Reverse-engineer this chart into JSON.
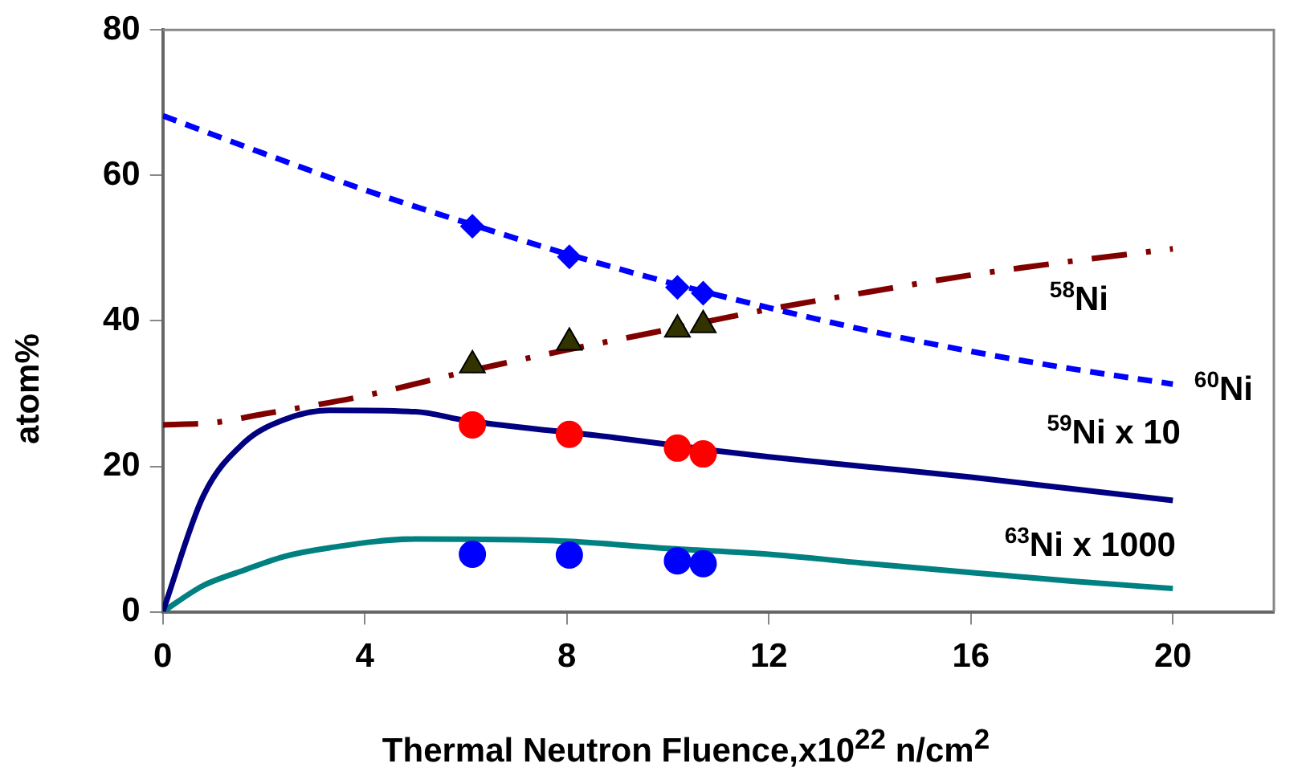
{
  "chart_data": {
    "type": "line",
    "xlabel": "Thermal Neutron Fluence,x10$^{22}$ n/cm$^{2}$",
    "ylabel": "atom%",
    "xlim": [
      0,
      22
    ],
    "xticks": [
      0,
      4,
      8,
      12,
      16,
      20
    ],
    "ylim": [
      0,
      80
    ],
    "yticks": [
      0,
      20,
      40,
      60,
      80
    ],
    "grid": false,
    "legend": false,
    "series": [
      {
        "name": "$^{60}$Ni",
        "color": "#0000ff",
        "line_style": "dashed",
        "marker": "none",
        "x": [
          0,
          2,
          4,
          6,
          8,
          10,
          12,
          14,
          16,
          18,
          20
        ],
        "values": [
          68.2,
          63,
          58,
          53.5,
          49.2,
          45.3,
          41.8,
          38.6,
          35.8,
          33.4,
          31.3
        ]
      },
      {
        "name": "$^{58}$Ni",
        "color": "#800000",
        "line_style": "dashdot",
        "marker": "none",
        "x": [
          0,
          1,
          2,
          4,
          6,
          8,
          10,
          12,
          14,
          16,
          18,
          20
        ],
        "values": [
          25.7,
          26,
          27.2,
          29.7,
          33,
          36,
          38.8,
          41.6,
          44,
          46.3,
          48.2,
          49.9
        ]
      },
      {
        "name": "$^{59}$Ni x 10",
        "color": "#000080",
        "line_style": "solid",
        "marker": "none",
        "x": [
          0,
          0.8,
          1.6,
          2.4,
          3.3,
          5,
          6,
          9,
          11,
          12,
          14,
          16,
          18,
          20
        ],
        "values": [
          0,
          15.9,
          23.2,
          26.4,
          27.7,
          27.5,
          26.3,
          23.9,
          22.1,
          21.3,
          19.9,
          18.5,
          16.9,
          15.3
        ]
      },
      {
        "name": "$^{63}$Ni x 1000",
        "color": "#008080",
        "line_style": "solid",
        "marker": "none",
        "x": [
          0,
          0.8,
          1.6,
          2.4,
          3.3,
          5,
          8,
          10,
          12,
          14,
          16,
          18,
          20
        ],
        "values": [
          0,
          3.6,
          5.7,
          7.6,
          8.8,
          10,
          9.7,
          8.7,
          7.9,
          6.6,
          5.4,
          4.2,
          3.2
        ]
      },
      {
        "type": "scatter",
        "color": "#0000ff",
        "marker": "diamond",
        "x": [
          6.13,
          8.05,
          10.19,
          10.7
        ],
        "values": [
          53,
          48.8,
          44.6,
          43.8
        ]
      },
      {
        "type": "scatter",
        "color": "#333300",
        "marker": "triangle",
        "x": [
          6.13,
          8.05,
          10.19,
          10.7
        ],
        "values": [
          33.9,
          37,
          38.8,
          39.4
        ]
      },
      {
        "type": "scatter",
        "color": "#ff0000",
        "marker": "circle",
        "x": [
          6.13,
          8.05,
          10.19,
          10.7
        ],
        "values": [
          25.7,
          24.4,
          22.5,
          21.7
        ]
      },
      {
        "type": "scatter",
        "color": "#0000ff",
        "marker": "circle",
        "x": [
          6.13,
          8.05,
          10.19,
          10.7
        ],
        "values": [
          7.9,
          7.8,
          7,
          6.6
        ]
      }
    ]
  }
}
